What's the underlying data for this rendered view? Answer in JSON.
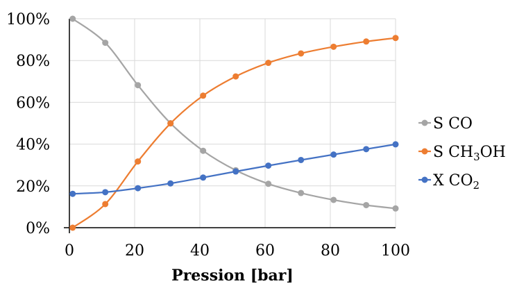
{
  "chart_data": {
    "type": "line",
    "title": "",
    "xlabel": "Pression [bar]",
    "ylabel": "",
    "xlim": [
      0,
      100
    ],
    "ylim": [
      0,
      100
    ],
    "x_ticks": [
      "0",
      "20",
      "40",
      "60",
      "80",
      "100"
    ],
    "y_ticks": [
      "0%",
      "20%",
      "40%",
      "60%",
      "80%",
      "100%"
    ],
    "grid": true,
    "legend_position": "right",
    "smooth": true,
    "x": [
      1,
      11,
      21,
      31,
      41,
      51,
      61,
      71,
      81,
      91,
      100
    ],
    "series": [
      {
        "name": "S CO",
        "legend": {
          "main": "S CO",
          "sub": "",
          "tail": ""
        },
        "color": "#a5a5a5",
        "values": [
          100,
          88.5,
          68.2,
          50,
          36.8,
          27.5,
          21,
          16.6,
          13.3,
          10.8,
          9.2
        ]
      },
      {
        "name": "S CH3OH",
        "legend": {
          "main": "S CH",
          "sub": "3",
          "tail": "OH"
        },
        "color": "#ed7d31",
        "values": [
          0,
          11.3,
          31.7,
          49.9,
          63.2,
          72.4,
          78.9,
          83.4,
          86.6,
          89.1,
          90.8
        ]
      },
      {
        "name": "X CO2",
        "legend": {
          "main": "X CO",
          "sub": "2",
          "tail": ""
        },
        "color": "#4472c4",
        "values": [
          16.2,
          17,
          18.9,
          21.2,
          24,
          26.9,
          29.7,
          32.4,
          35,
          37.6,
          39.9
        ]
      }
    ]
  }
}
